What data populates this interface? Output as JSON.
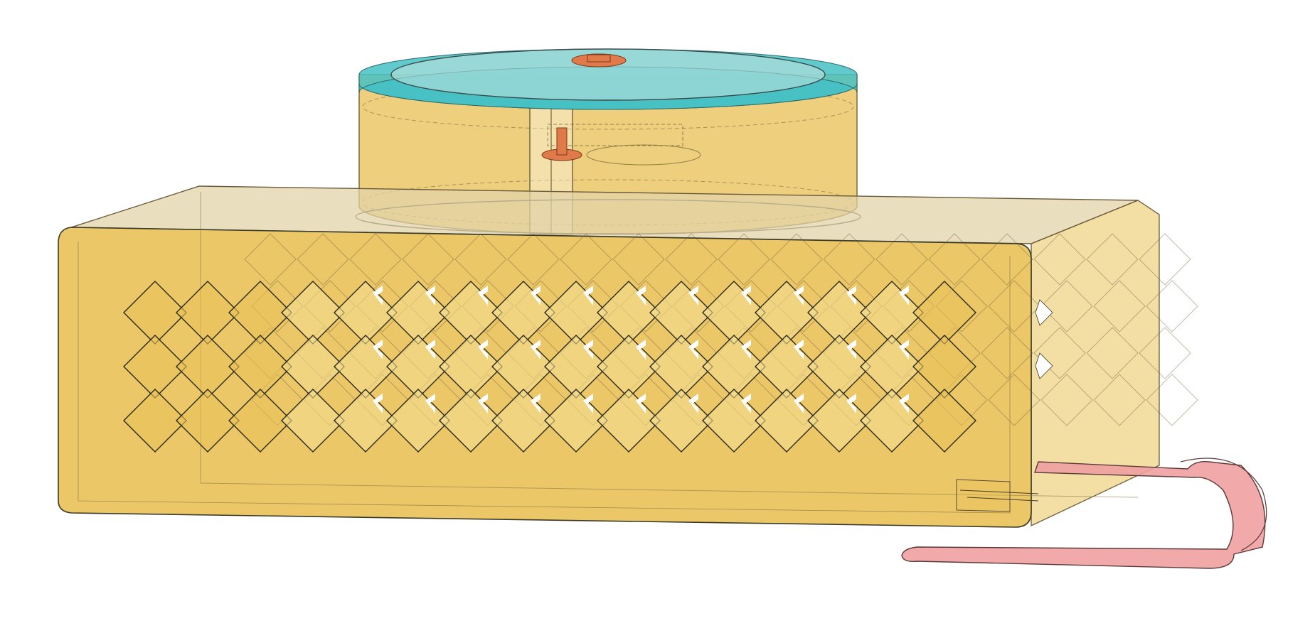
{
  "scene": {
    "background": "#ffffff",
    "parts": [
      {
        "name": "enclosure-box",
        "color": "#e9c25a"
      },
      {
        "name": "round-lid",
        "color": "#e9c25a"
      },
      {
        "name": "lid-top-ring",
        "color": "#45c1c4"
      },
      {
        "name": "center-pin",
        "color": "#e07a4a"
      },
      {
        "name": "belt-clip",
        "color": "#efa0a0"
      }
    ],
    "pattern": {
      "rows": 3,
      "columns": 16,
      "cutouts": "cross-diamond"
    }
  }
}
